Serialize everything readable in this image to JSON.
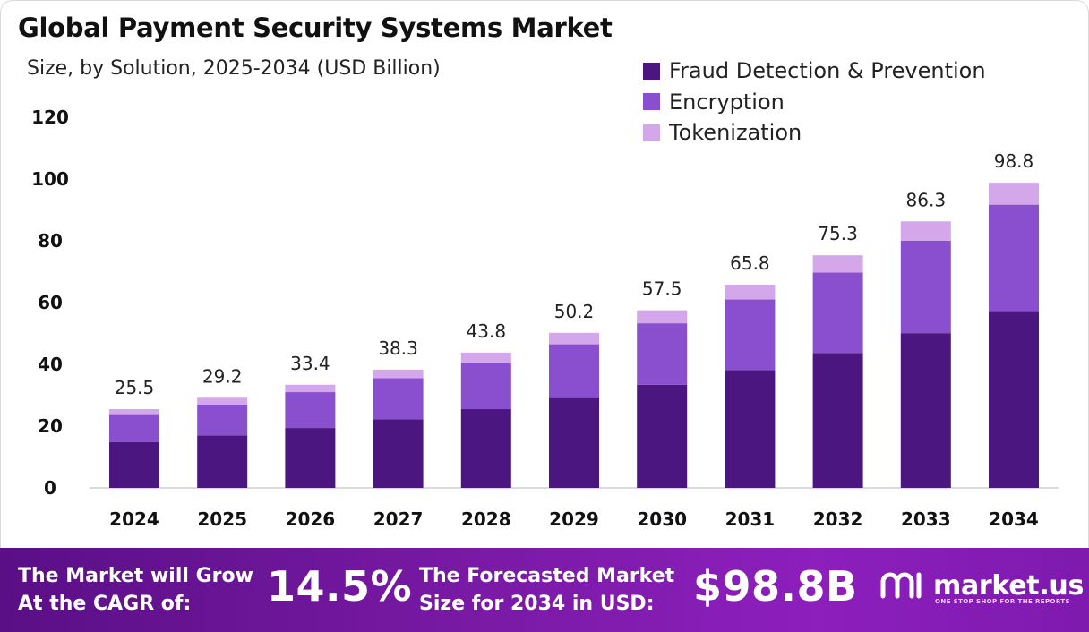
{
  "header": {
    "title": "Global Payment Security Systems Market",
    "subtitle": "Size, by Solution, 2025-2034 (USD Billion)"
  },
  "chart_data": {
    "type": "bar",
    "stacked": true,
    "categories": [
      "2024",
      "2025",
      "2026",
      "2027",
      "2028",
      "2029",
      "2030",
      "2031",
      "2032",
      "2033",
      "2034"
    ],
    "series": [
      {
        "name": "Fraud Detection & Prevention",
        "color": "#4b1680",
        "values": [
          14.8,
          17.0,
          19.4,
          22.2,
          25.5,
          29.1,
          33.4,
          38.1,
          43.7,
          50.1,
          57.3
        ]
      },
      {
        "name": "Encryption",
        "color": "#8a4fce",
        "values": [
          8.8,
          10.0,
          11.6,
          13.3,
          15.1,
          17.4,
          19.9,
          22.9,
          26.0,
          29.9,
          34.4
        ]
      },
      {
        "name": "Tokenization",
        "color": "#d4a6ea",
        "values": [
          1.9,
          2.2,
          2.4,
          2.8,
          3.2,
          3.7,
          4.2,
          4.8,
          5.6,
          6.3,
          7.1
        ]
      }
    ],
    "totals": [
      "25.5",
      "29.2",
      "33.4",
      "38.3",
      "43.8",
      "50.2",
      "57.5",
      "65.8",
      "75.3",
      "86.3",
      "98.8"
    ],
    "yticks": [
      "0",
      "20",
      "40",
      "60",
      "80",
      "100",
      "120"
    ],
    "ylim": [
      0,
      120
    ],
    "grid": false,
    "legend_position": "top-right"
  },
  "footer": {
    "cagr_label_1": "The Market will Grow",
    "cagr_label_2": "At the CAGR of:",
    "cagr_value": "14.5%",
    "forecast_label_1": "The Forecasted Market",
    "forecast_label_2": "Size for 2034 in USD:",
    "forecast_value": "$98.8B",
    "brand_name": "market.us",
    "brand_tagline": "ONE STOP SHOP FOR THE REPORTS"
  }
}
